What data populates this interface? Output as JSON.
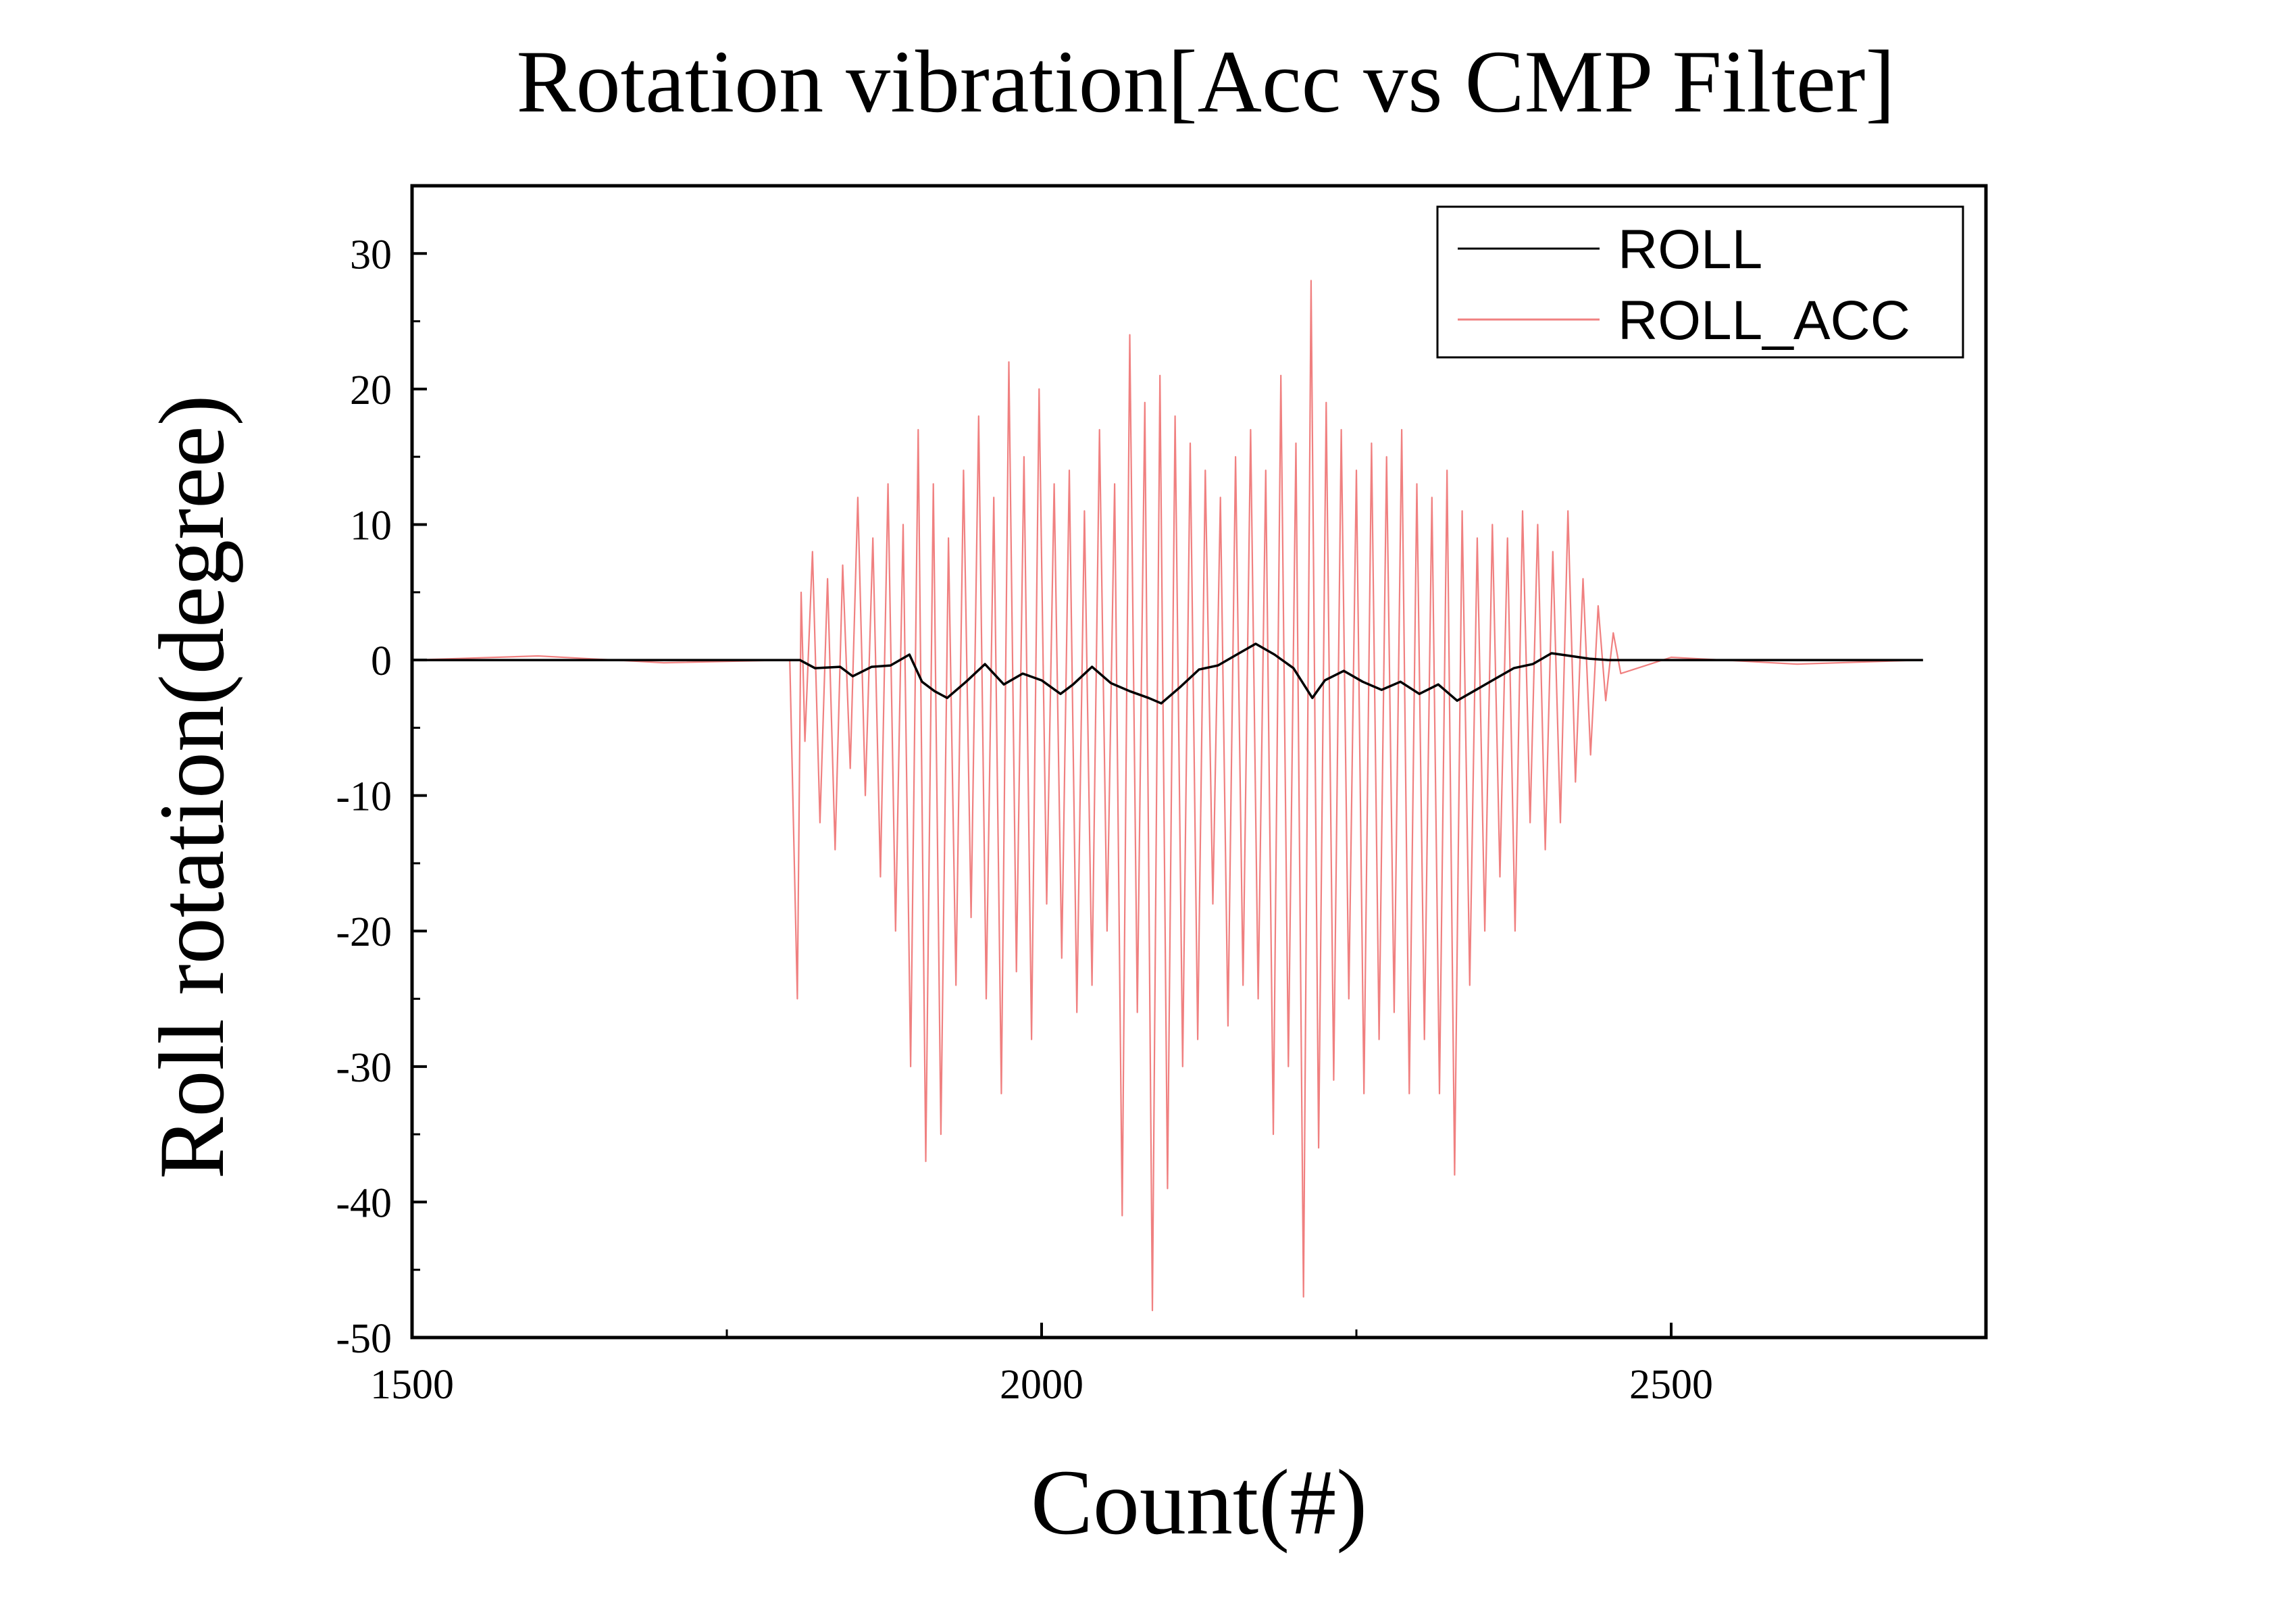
{
  "chart_data": {
    "type": "line",
    "title": "Rotation vibration[Acc vs CMP Filter]",
    "xlabel": "Count(#)",
    "ylabel": "Roll rotation(degree)",
    "xlim": [
      1500,
      2750
    ],
    "ylim": [
      -50,
      35
    ],
    "xticks": [
      1500,
      2000,
      2500
    ],
    "xtick_labels": [
      "1500",
      "2000",
      "2500"
    ],
    "xminor_ticks": [
      1750,
      2250
    ],
    "yticks": [
      30,
      20,
      10,
      0,
      -10,
      -20,
      -30,
      -40,
      -50
    ],
    "ytick_labels": [
      "30",
      "20",
      "10",
      "0",
      "-10",
      "-20",
      "-30",
      "-40",
      "-50"
    ],
    "grid": false,
    "legend": {
      "position": "top-right"
    },
    "series": [
      {
        "name": "ROLL",
        "color": "#000000",
        "x": [
          1500,
          1620,
          1740,
          1808,
          1820,
          1840,
          1850,
          1865,
          1880,
          1895,
          1905,
          1915,
          1925,
          1940,
          1955,
          1970,
          1985,
          2000,
          2015,
          2025,
          2040,
          2055,
          2070,
          2085,
          2095,
          2110,
          2125,
          2140,
          2155,
          2170,
          2185,
          2200,
          2215,
          2225,
          2240,
          2255,
          2270,
          2285,
          2300,
          2315,
          2330,
          2345,
          2360,
          2375,
          2390,
          2405,
          2420,
          2435,
          2450,
          2500,
          2600,
          2700
        ],
        "y": [
          0,
          0,
          0,
          0,
          -0.6,
          -0.5,
          -1.2,
          -0.5,
          -0.4,
          0.4,
          -1.6,
          -2.3,
          -2.8,
          -1.6,
          -0.3,
          -1.8,
          -1.0,
          -1.5,
          -2.5,
          -1.8,
          -0.5,
          -1.7,
          -2.3,
          -2.8,
          -3.2,
          -2.0,
          -0.7,
          -0.4,
          0.4,
          1.2,
          0.4,
          -0.6,
          -2.8,
          -1.5,
          -0.8,
          -1.6,
          -2.2,
          -1.6,
          -2.5,
          -1.8,
          -3.0,
          -2.2,
          -1.4,
          -0.6,
          -0.3,
          0.5,
          0.3,
          0.1,
          0,
          0,
          0,
          0
        ]
      },
      {
        "name": "ROLL_ACC",
        "color": "#f08080",
        "x": [
          1500,
          1600,
          1700,
          1800,
          1806,
          1809,
          1812,
          1818,
          1824,
          1830,
          1836,
          1842,
          1848,
          1854,
          1860,
          1866,
          1872,
          1878,
          1884,
          1890,
          1896,
          1902,
          1908,
          1914,
          1920,
          1926,
          1932,
          1938,
          1944,
          1950,
          1956,
          1962,
          1968,
          1974,
          1980,
          1986,
          1992,
          1998,
          2004,
          2010,
          2016,
          2022,
          2028,
          2034,
          2040,
          2046,
          2052,
          2058,
          2064,
          2070,
          2076,
          2082,
          2088,
          2094,
          2100,
          2106,
          2112,
          2118,
          2124,
          2130,
          2136,
          2142,
          2148,
          2154,
          2160,
          2166,
          2172,
          2178,
          2184,
          2190,
          2196,
          2202,
          2208,
          2214,
          2220,
          2226,
          2232,
          2238,
          2244,
          2250,
          2256,
          2262,
          2268,
          2274,
          2280,
          2286,
          2292,
          2298,
          2304,
          2310,
          2316,
          2322,
          2328,
          2334,
          2340,
          2346,
          2352,
          2358,
          2364,
          2370,
          2376,
          2382,
          2388,
          2394,
          2400,
          2406,
          2412,
          2418,
          2424,
          2430,
          2436,
          2442,
          2448,
          2454,
          2460,
          2500,
          2600,
          2700
        ],
        "y": [
          0,
          0.3,
          -0.2,
          0,
          -25,
          5,
          -6,
          8,
          -12,
          6,
          -14,
          7,
          -8,
          12,
          -10,
          9,
          -16,
          13,
          -20,
          10,
          -30,
          17,
          -37,
          13,
          -35,
          9,
          -24,
          14,
          -19,
          18,
          -25,
          12,
          -32,
          22,
          -23,
          15,
          -28,
          20,
          -18,
          13,
          -22,
          14,
          -26,
          11,
          -24,
          17,
          -20,
          13,
          -41,
          24,
          -26,
          19,
          -48,
          21,
          -39,
          18,
          -30,
          16,
          -28,
          14,
          -18,
          12,
          -27,
          15,
          -24,
          17,
          -25,
          14,
          -35,
          21,
          -30,
          16,
          -47,
          28,
          -36,
          19,
          -31,
          17,
          -25,
          14,
          -32,
          16,
          -28,
          15,
          -26,
          17,
          -32,
          13,
          -28,
          12,
          -32,
          14,
          -38,
          11,
          -24,
          9,
          -20,
          10,
          -16,
          9,
          -20,
          11,
          -12,
          10,
          -14,
          8,
          -12,
          11,
          -9,
          6,
          -7,
          4,
          -3,
          2,
          -1,
          0.2,
          -0.3,
          0
        ]
      }
    ]
  }
}
